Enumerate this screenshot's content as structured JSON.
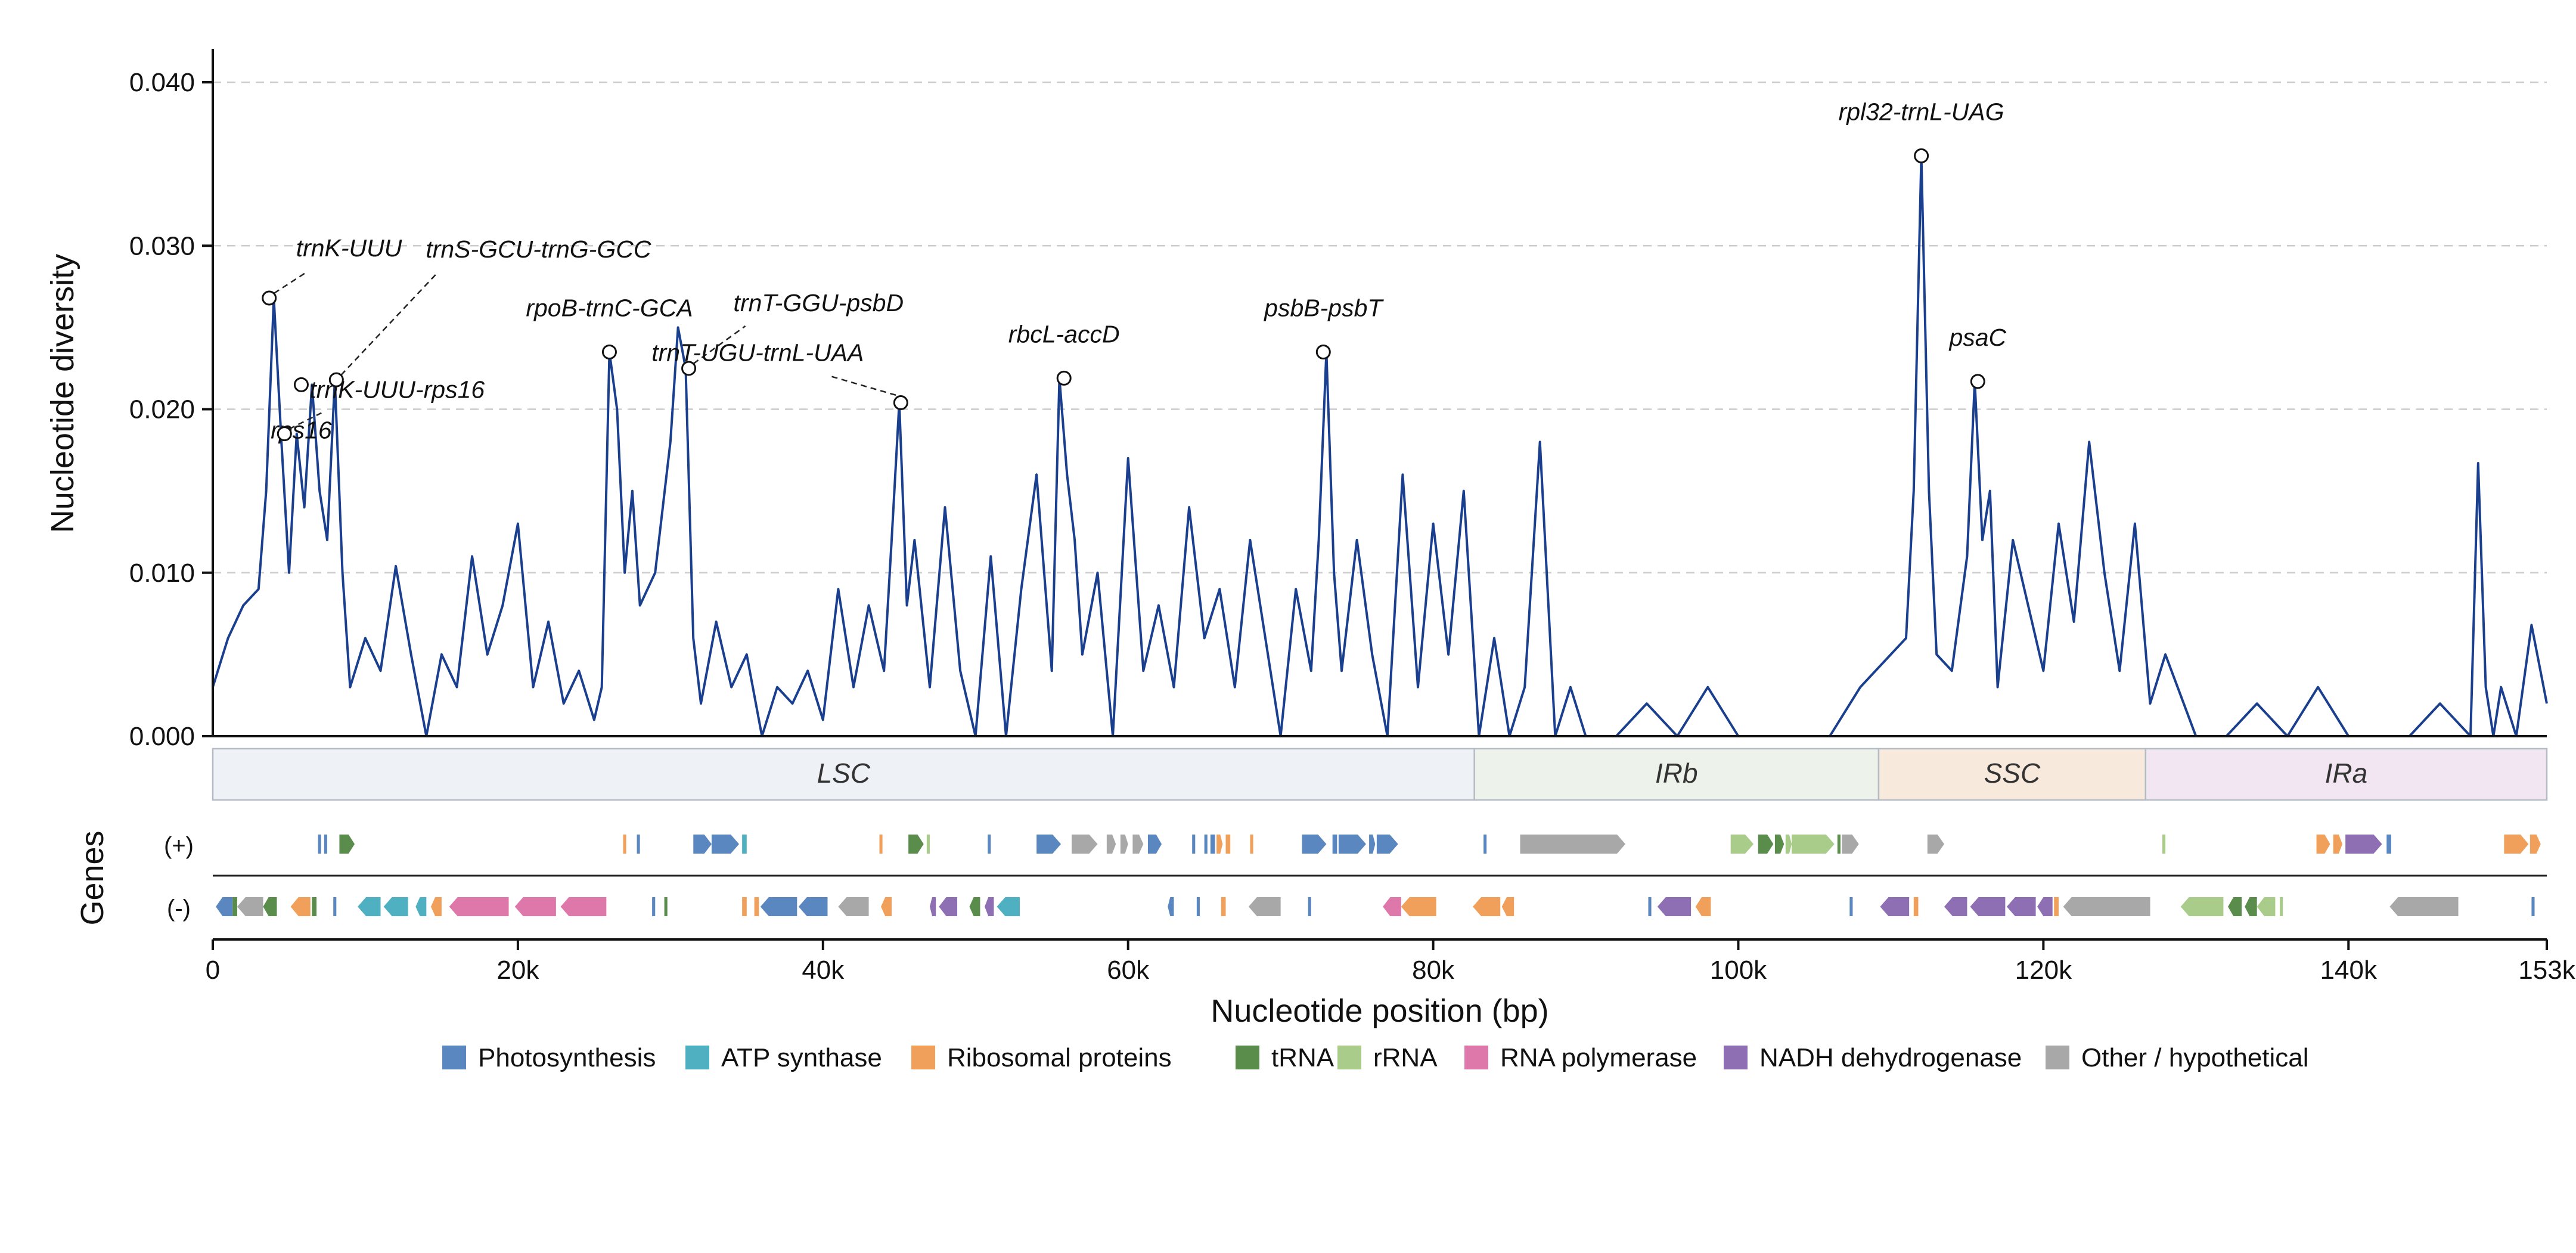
{
  "chart_data": {
    "type": "line",
    "xlabel": "Nucleotide position (bp)",
    "ylabel": "Nucleotide diversity",
    "xlim": [
      0,
      153000
    ],
    "ylim": [
      0,
      0.04
    ],
    "x_ticks": [
      0,
      20000,
      40000,
      60000,
      80000,
      100000,
      120000,
      140000,
      153000
    ],
    "x_tick_labels": [
      "0",
      "20k",
      "40k",
      "60k",
      "80k",
      "100k",
      "120k",
      "140k",
      "153k"
    ],
    "y_ticks": [
      0.0,
      0.01,
      0.02,
      0.03,
      0.04
    ],
    "y_tick_labels": [
      "0.000",
      "0.010",
      "0.020",
      "0.030",
      "0.040"
    ],
    "grid": "horizontal dashed",
    "series": [
      {
        "color": "#1a3f8f",
        "x": [
          0,
          1000,
          2000,
          3000,
          3500,
          4000,
          4500,
          5000,
          5500,
          6000,
          6500,
          7000,
          7500,
          8000,
          8500,
          9000,
          10000,
          11000,
          12000,
          13000,
          14000,
          15000,
          16000,
          17000,
          18000,
          19000,
          20000,
          21000,
          22000,
          23000,
          24000,
          25000,
          25500,
          26000,
          26500,
          27000,
          27500,
          28000,
          29000,
          30000,
          30500,
          31000,
          31500,
          32000,
          33000,
          34000,
          35000,
          36000,
          37000,
          38000,
          39000,
          40000,
          41000,
          42000,
          43000,
          44000,
          44500,
          45000,
          45500,
          46000,
          47000,
          48000,
          49000,
          50000,
          51000,
          52000,
          53000,
          54000,
          55000,
          55500,
          56000,
          56500,
          57000,
          58000,
          59000,
          60000,
          61000,
          62000,
          63000,
          64000,
          65000,
          66000,
          67000,
          68000,
          69000,
          70000,
          71000,
          72000,
          72500,
          73000,
          73500,
          74000,
          75000,
          76000,
          77000,
          78000,
          79000,
          80000,
          81000,
          82000,
          83000,
          84000,
          85000,
          86000,
          87000,
          88000,
          89000,
          90000,
          92000,
          94000,
          96000,
          98000,
          100000,
          102000,
          104000,
          106000,
          108000,
          110000,
          111000,
          111500,
          112000,
          112500,
          113000,
          114000,
          115000,
          115500,
          116000,
          116500,
          117000,
          118000,
          119000,
          120000,
          121000,
          122000,
          123000,
          124000,
          125000,
          126000,
          127000,
          128000,
          130000,
          132000,
          134000,
          136000,
          138000,
          140000,
          142000,
          144000,
          146000,
          148000,
          148500,
          149000,
          149500,
          150000,
          151000,
          152000,
          153000
        ],
        "y": [
          0.003,
          0.006,
          0.008,
          0.009,
          0.015,
          0.0268,
          0.018,
          0.01,
          0.0185,
          0.014,
          0.0215,
          0.015,
          0.012,
          0.0218,
          0.01,
          0.003,
          0.006,
          0.004,
          0.0104,
          0.005,
          0.0,
          0.005,
          0.003,
          0.011,
          0.005,
          0.008,
          0.013,
          0.003,
          0.007,
          0.002,
          0.004,
          0.001,
          0.003,
          0.0235,
          0.02,
          0.01,
          0.015,
          0.008,
          0.01,
          0.018,
          0.025,
          0.0225,
          0.006,
          0.002,
          0.007,
          0.003,
          0.005,
          0.0,
          0.003,
          0.002,
          0.004,
          0.001,
          0.009,
          0.003,
          0.008,
          0.004,
          0.012,
          0.0204,
          0.008,
          0.012,
          0.003,
          0.014,
          0.004,
          0.0,
          0.011,
          0.0,
          0.009,
          0.016,
          0.004,
          0.0219,
          0.016,
          0.012,
          0.005,
          0.01,
          0.0,
          0.017,
          0.004,
          0.008,
          0.003,
          0.014,
          0.006,
          0.009,
          0.003,
          0.012,
          0.006,
          0.0,
          0.009,
          0.004,
          0.012,
          0.0235,
          0.01,
          0.004,
          0.012,
          0.005,
          0.0,
          0.016,
          0.003,
          0.013,
          0.005,
          0.015,
          0.0,
          0.006,
          0.0,
          0.003,
          0.018,
          0.0,
          0.003,
          0.0,
          0.0,
          0.002,
          0.0,
          0.003,
          0.0,
          0.0,
          0.0,
          0.0,
          0.003,
          0.005,
          0.006,
          0.015,
          0.0355,
          0.015,
          0.005,
          0.004,
          0.011,
          0.0217,
          0.012,
          0.015,
          0.003,
          0.012,
          0.008,
          0.004,
          0.013,
          0.007,
          0.018,
          0.01,
          0.004,
          0.013,
          0.002,
          0.005,
          0.0,
          0.0,
          0.002,
          0.0,
          0.003,
          0.0,
          0.0,
          0.0,
          0.002,
          0.0,
          0.0167,
          0.003,
          0.0,
          0.003,
          0.0,
          0.0068,
          0.002
        ]
      }
    ],
    "annotations": [
      {
        "label": "trnK-UUU",
        "x": 3700,
        "y": 0.0268
      },
      {
        "label": "rps16",
        "x": 5800,
        "y": 0.0215
      },
      {
        "label": "trnK-UUU-rps16",
        "x": 4700,
        "y": 0.0185
      },
      {
        "label": "trnS-GCU-trnG-GCC",
        "x": 8100,
        "y": 0.0218
      },
      {
        "label": "rpoB-trnC-GCA",
        "x": 26000,
        "y": 0.0235
      },
      {
        "label": "trnT-GGU-psbD",
        "x": 31200,
        "y": 0.0225
      },
      {
        "label": "trnT-UGU-trnL-UAA",
        "x": 45100,
        "y": 0.0204
      },
      {
        "label": "rbcL-accD",
        "x": 55800,
        "y": 0.0219
      },
      {
        "label": "psbB-psbT",
        "x": 72800,
        "y": 0.0235
      },
      {
        "label": "rpl32-trnL-UAG",
        "x": 112000,
        "y": 0.0355
      },
      {
        "label": "psaC",
        "x": 115700,
        "y": 0.0217
      }
    ],
    "regions": [
      {
        "label": "LSC",
        "start": 0,
        "end": 82700,
        "color": "#eef2f6"
      },
      {
        "label": "IRb",
        "start": 82700,
        "end": 109200,
        "color": "#edf3ea"
      },
      {
        "label": "SSC",
        "start": 109200,
        "end": 126700,
        "color": "#f8e9dd"
      },
      {
        "label": "IRa",
        "start": 126700,
        "end": 153000,
        "color": "#f1e6f1"
      }
    ],
    "genes_label": "Genes",
    "strand_labels": [
      "(+)",
      "(-)"
    ],
    "legend": [
      {
        "label": "Photosynthesis",
        "color": "#5b87c0"
      },
      {
        "label": "ATP synthase",
        "color": "#4fb0c2"
      },
      {
        "label": "Ribosomal proteins",
        "color": "#f0a05a"
      },
      {
        "label": "tRNA",
        "color": "#5a8d4b"
      },
      {
        "label": "rRNA",
        "color": "#a9cc8a"
      },
      {
        "label": "RNA polymerase",
        "color": "#de78aa"
      },
      {
        "label": "NADH dehydrogenase",
        "color": "#8e6fb3"
      },
      {
        "label": "Other / hypothetical",
        "color": "#a8a8a8"
      }
    ],
    "genes": {
      "plus": [
        {
          "s": 6900,
          "e": 7100,
          "c": 0
        },
        {
          "s": 7300,
          "e": 7500,
          "c": 0
        },
        {
          "s": 8300,
          "e": 9300,
          "c": 3
        },
        {
          "s": 26900,
          "e": 27100,
          "c": 2
        },
        {
          "s": 27800,
          "e": 28000,
          "c": 0
        },
        {
          "s": 31500,
          "e": 32700,
          "c": 0
        },
        {
          "s": 32700,
          "e": 34500,
          "c": 0
        },
        {
          "s": 34700,
          "e": 35000,
          "c": 1
        },
        {
          "s": 43700,
          "e": 43900,
          "c": 2
        },
        {
          "s": 45600,
          "e": 46600,
          "c": 3
        },
        {
          "s": 46800,
          "e": 47000,
          "c": 4
        },
        {
          "s": 50800,
          "e": 51000,
          "c": 0
        },
        {
          "s": 54000,
          "e": 55600,
          "c": 0
        },
        {
          "s": 56300,
          "e": 58000,
          "c": 7
        },
        {
          "s": 58600,
          "e": 59200,
          "c": 7
        },
        {
          "s": 59500,
          "e": 60000,
          "c": 7
        },
        {
          "s": 60300,
          "e": 61000,
          "c": 7
        },
        {
          "s": 61300,
          "e": 62200,
          "c": 0
        },
        {
          "s": 64200,
          "e": 64400,
          "c": 0
        },
        {
          "s": 65000,
          "e": 65200,
          "c": 0
        },
        {
          "s": 65400,
          "e": 65700,
          "c": 0
        },
        {
          "s": 65800,
          "e": 66200,
          "c": 2
        },
        {
          "s": 66400,
          "e": 66700,
          "c": 2
        },
        {
          "s": 68000,
          "e": 68200,
          "c": 2
        },
        {
          "s": 71400,
          "e": 73000,
          "c": 0
        },
        {
          "s": 73400,
          "e": 73700,
          "c": 0
        },
        {
          "s": 73800,
          "e": 75600,
          "c": 0
        },
        {
          "s": 75800,
          "e": 76200,
          "c": 0
        },
        {
          "s": 76300,
          "e": 77700,
          "c": 0
        },
        {
          "s": 83300,
          "e": 83500,
          "c": 0
        },
        {
          "s": 85700,
          "e": 92600,
          "c": 7
        },
        {
          "s": 99500,
          "e": 101000,
          "c": 4
        },
        {
          "s": 101300,
          "e": 102300,
          "c": 3
        },
        {
          "s": 102400,
          "e": 103000,
          "c": 3
        },
        {
          "s": 103100,
          "e": 103500,
          "c": 4
        },
        {
          "s": 103500,
          "e": 106300,
          "c": 4
        },
        {
          "s": 106500,
          "e": 106700,
          "c": 3
        },
        {
          "s": 106800,
          "e": 107900,
          "c": 7
        },
        {
          "s": 112400,
          "e": 113500,
          "c": 7
        },
        {
          "s": 127800,
          "e": 128000,
          "c": 4
        },
        {
          "s": 137900,
          "e": 138800,
          "c": 2
        },
        {
          "s": 139000,
          "e": 139600,
          "c": 2
        },
        {
          "s": 139800,
          "e": 142200,
          "c": 6
        },
        {
          "s": 142500,
          "e": 142800,
          "c": 0
        },
        {
          "s": 150200,
          "e": 150500,
          "c": 2
        },
        {
          "s": 150500,
          "e": 151800,
          "c": 2
        },
        {
          "s": 151900,
          "e": 152600,
          "c": 2
        }
      ],
      "minus": [
        {
          "s": 200,
          "e": 1300,
          "c": 0
        },
        {
          "s": 1300,
          "e": 1600,
          "c": 3
        },
        {
          "s": 1600,
          "e": 3300,
          "c": 7
        },
        {
          "s": 3300,
          "e": 4200,
          "c": 3
        },
        {
          "s": 5100,
          "e": 6400,
          "c": 2
        },
        {
          "s": 6500,
          "e": 6800,
          "c": 3
        },
        {
          "s": 7900,
          "e": 8100,
          "c": 0
        },
        {
          "s": 9500,
          "e": 11000,
          "c": 1
        },
        {
          "s": 11200,
          "e": 12800,
          "c": 1
        },
        {
          "s": 13300,
          "e": 14000,
          "c": 1
        },
        {
          "s": 14300,
          "e": 15000,
          "c": 2
        },
        {
          "s": 15500,
          "e": 19400,
          "c": 5
        },
        {
          "s": 19800,
          "e": 22500,
          "c": 5
        },
        {
          "s": 22800,
          "e": 25800,
          "c": 5
        },
        {
          "s": 28800,
          "e": 29000,
          "c": 0
        },
        {
          "s": 29600,
          "e": 29800,
          "c": 3
        },
        {
          "s": 34700,
          "e": 35000,
          "c": 2
        },
        {
          "s": 35500,
          "e": 35800,
          "c": 2
        },
        {
          "s": 35900,
          "e": 38300,
          "c": 0
        },
        {
          "s": 38400,
          "e": 40300,
          "c": 0
        },
        {
          "s": 41000,
          "e": 43000,
          "c": 7
        },
        {
          "s": 43800,
          "e": 44500,
          "c": 2
        },
        {
          "s": 47000,
          "e": 47400,
          "c": 6
        },
        {
          "s": 47600,
          "e": 48800,
          "c": 6
        },
        {
          "s": 49600,
          "e": 50300,
          "c": 3
        },
        {
          "s": 50600,
          "e": 51200,
          "c": 6
        },
        {
          "s": 51400,
          "e": 52900,
          "c": 1
        },
        {
          "s": 62600,
          "e": 63000,
          "c": 0
        },
        {
          "s": 64500,
          "e": 64700,
          "c": 0
        },
        {
          "s": 66100,
          "e": 66400,
          "c": 2
        },
        {
          "s": 67900,
          "e": 70000,
          "c": 7
        },
        {
          "s": 71800,
          "e": 72000,
          "c": 0
        },
        {
          "s": 76700,
          "e": 77900,
          "c": 5
        },
        {
          "s": 77900,
          "e": 80200,
          "c": 2
        },
        {
          "s": 82600,
          "e": 84400,
          "c": 2
        },
        {
          "s": 84500,
          "e": 85300,
          "c": 2
        },
        {
          "s": 94100,
          "e": 94300,
          "c": 0
        },
        {
          "s": 94700,
          "e": 96900,
          "c": 6
        },
        {
          "s": 97200,
          "e": 98200,
          "c": 2
        },
        {
          "s": 107300,
          "e": 107500,
          "c": 0
        },
        {
          "s": 109300,
          "e": 111200,
          "c": 6
        },
        {
          "s": 111500,
          "e": 111800,
          "c": 2
        },
        {
          "s": 113500,
          "e": 115000,
          "c": 6
        },
        {
          "s": 115200,
          "e": 117500,
          "c": 6
        },
        {
          "s": 117600,
          "e": 119500,
          "c": 6
        },
        {
          "s": 119600,
          "e": 120600,
          "c": 6
        },
        {
          "s": 120700,
          "e": 121000,
          "c": 2
        },
        {
          "s": 121300,
          "e": 127000,
          "c": 7
        },
        {
          "s": 129000,
          "e": 131800,
          "c": 4
        },
        {
          "s": 132100,
          "e": 133000,
          "c": 3
        },
        {
          "s": 133200,
          "e": 134000,
          "c": 3
        },
        {
          "s": 134000,
          "e": 135200,
          "c": 4
        },
        {
          "s": 135500,
          "e": 135700,
          "c": 4
        },
        {
          "s": 142700,
          "e": 147200,
          "c": 7
        },
        {
          "s": 152000,
          "e": 152200,
          "c": 0
        }
      ]
    }
  }
}
